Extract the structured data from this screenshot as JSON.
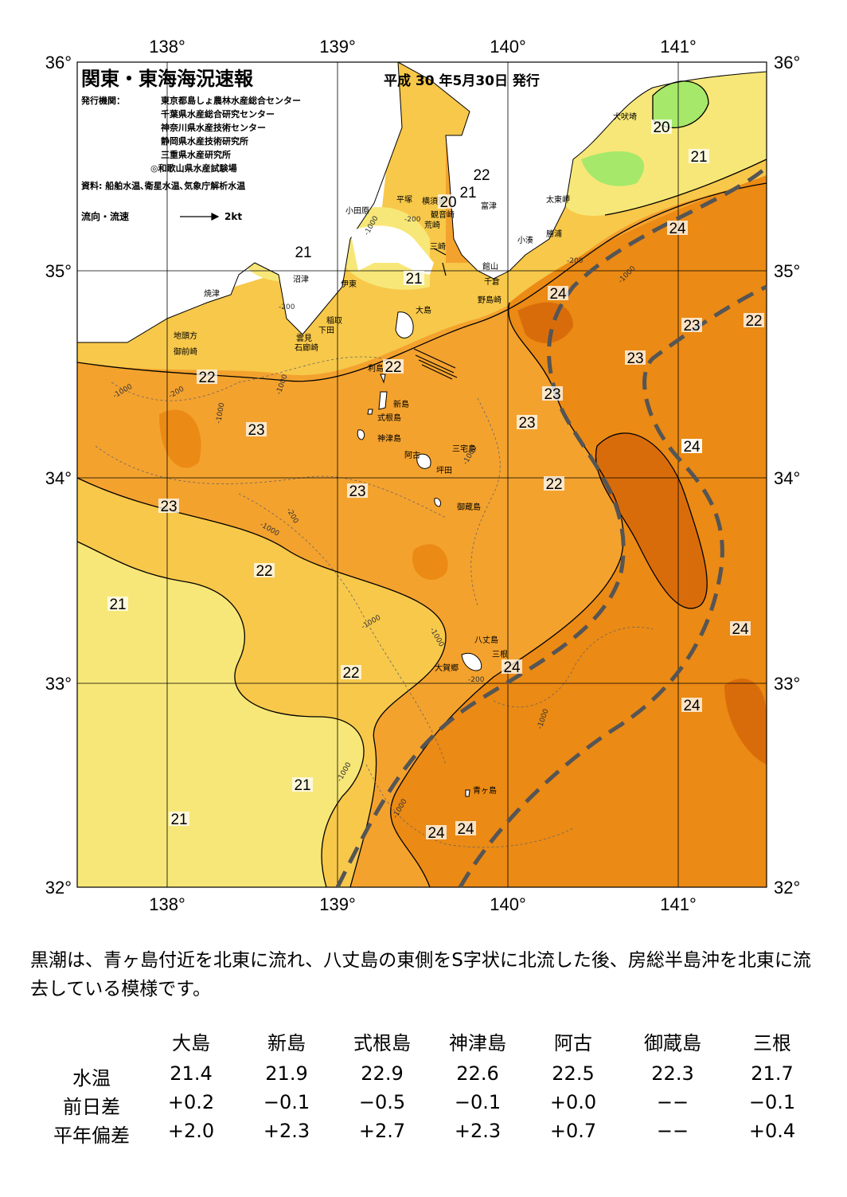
{
  "title": "関東・東海海況速報",
  "issue_date": "平成 30 年5月30日 発行",
  "issuers_label": "発行機関：",
  "issuers": [
    "東京都島しょ農林水産総合センター",
    "千葉県水産総合研究センター",
    "神奈川県水産技術センター",
    "静岡県水産技術研究所",
    "三重県水産研究所",
    "◎和歌山県水産試験場"
  ],
  "sources": "資料: 船舶水温､衛星水温､気象庁解析水温",
  "current_legend": {
    "label": "流向・流速",
    "scale": "2kt"
  },
  "axes": {
    "lon_labels": [
      "138°",
      "139°",
      "140°",
      "141°"
    ],
    "lat_labels": [
      "36°",
      "35°",
      "34°",
      "33°",
      "32°"
    ]
  },
  "place_names": [
    "犬吠埼",
    "太東岬",
    "勝浦",
    "小湊",
    "館山",
    "千倉",
    "野島崎",
    "富津",
    "観音崎",
    "荒崎",
    "横須賀",
    "平塚",
    "小田原",
    "三崎",
    "沼津",
    "伊東",
    "焼津",
    "稲取",
    "下田",
    "雲見",
    "石廊崎",
    "地頭方",
    "御前崎",
    "大島",
    "利島",
    "新島",
    "式根島",
    "神津島",
    "阿古",
    "三宅島",
    "坪田",
    "御蔵島",
    "八丈島",
    "三根",
    "大賀郷",
    "青ヶ島"
  ],
  "isotherm_labels": [
    "20",
    "21",
    "22",
    "21",
    "20",
    "24",
    "21",
    "21",
    "24",
    "22",
    "23",
    "24",
    "23",
    "22",
    "22",
    "23",
    "23",
    "23",
    "24",
    "22",
    "23",
    "23",
    "22",
    "21",
    "24",
    "22",
    "24",
    "24",
    "21",
    "21",
    "24",
    "24"
  ],
  "depth_labels": [
    "-200",
    "-1000",
    "-200",
    "-1000",
    "-1000",
    "-200",
    "-1000",
    "-200",
    "-1000",
    "-1000",
    "-200",
    "-1000",
    "-1000",
    "-1000",
    "-200",
    "-1000",
    "-1000",
    "-1000"
  ],
  "colors": {
    "ocean_20": "#a6e86a",
    "ocean_21": "#f7e778",
    "ocean_22": "#f7c84a",
    "ocean_23": "#f4a22e",
    "ocean_24": "#eb8a14",
    "ocean_25": "#d96c0a",
    "kuroshio": "#555555"
  },
  "summary": "黒潮は、青ヶ島付近を北東に流れ、八丈島の東側をS字状に北流した後、房総半島沖を北東に流去している模様です。",
  "table": {
    "columns": [
      "大島",
      "新島",
      "式根島",
      "神津島",
      "阿古",
      "御蔵島",
      "三根"
    ],
    "rows": [
      {
        "label": "水温",
        "values": [
          "21.4",
          "21.9",
          "22.9",
          "22.6",
          "22.5",
          "22.3",
          "21.7"
        ]
      },
      {
        "label": "前日差",
        "values": [
          "+0.2",
          "−0.1",
          "−0.5",
          "−0.1",
          "+0.0",
          "−−",
          "−0.1"
        ]
      },
      {
        "label": "平年偏差",
        "values": [
          "+2.0",
          "+2.3",
          "+2.7",
          "+2.3",
          "+0.7",
          "−−",
          "+0.4"
        ]
      }
    ]
  }
}
